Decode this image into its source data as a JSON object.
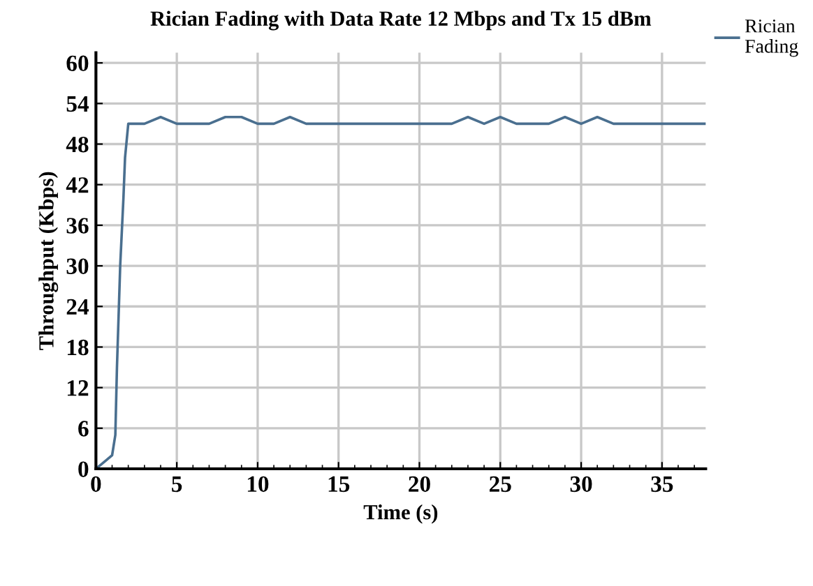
{
  "chart_data": {
    "type": "line",
    "title": "Rician Fading with Data Rate 12 Mbps and Tx 15 dBm",
    "xlabel": "Time (s)",
    "ylabel": "Throughput (Kbps)",
    "x": [
      0,
      0.5,
      1,
      1.2,
      1.3,
      1.5,
      1.7,
      1.8,
      2,
      3,
      4,
      5,
      7,
      8,
      9,
      10,
      11,
      12,
      13,
      22,
      23,
      24,
      25,
      26,
      28,
      29,
      30,
      31,
      32,
      37.7
    ],
    "series": [
      {
        "name": "Rician Fading",
        "color": "#4a6f8f",
        "values": [
          0,
          1,
          2,
          5,
          15,
          30,
          40,
          46,
          51,
          51,
          52,
          51,
          51,
          52,
          52,
          51,
          51,
          52,
          51,
          51,
          52,
          51,
          52,
          51,
          51,
          52,
          51,
          52,
          51,
          51
        ]
      }
    ],
    "xlim": [
      0,
      37.7
    ],
    "ylim": [
      0,
      61.5
    ],
    "xticks": [
      0,
      5,
      10,
      15,
      20,
      25,
      30,
      35
    ],
    "yticks": [
      0,
      6,
      12,
      18,
      24,
      30,
      36,
      42,
      48,
      54,
      60
    ],
    "grid": true,
    "legend": "top right",
    "marker": "none",
    "line_style": "solid"
  }
}
